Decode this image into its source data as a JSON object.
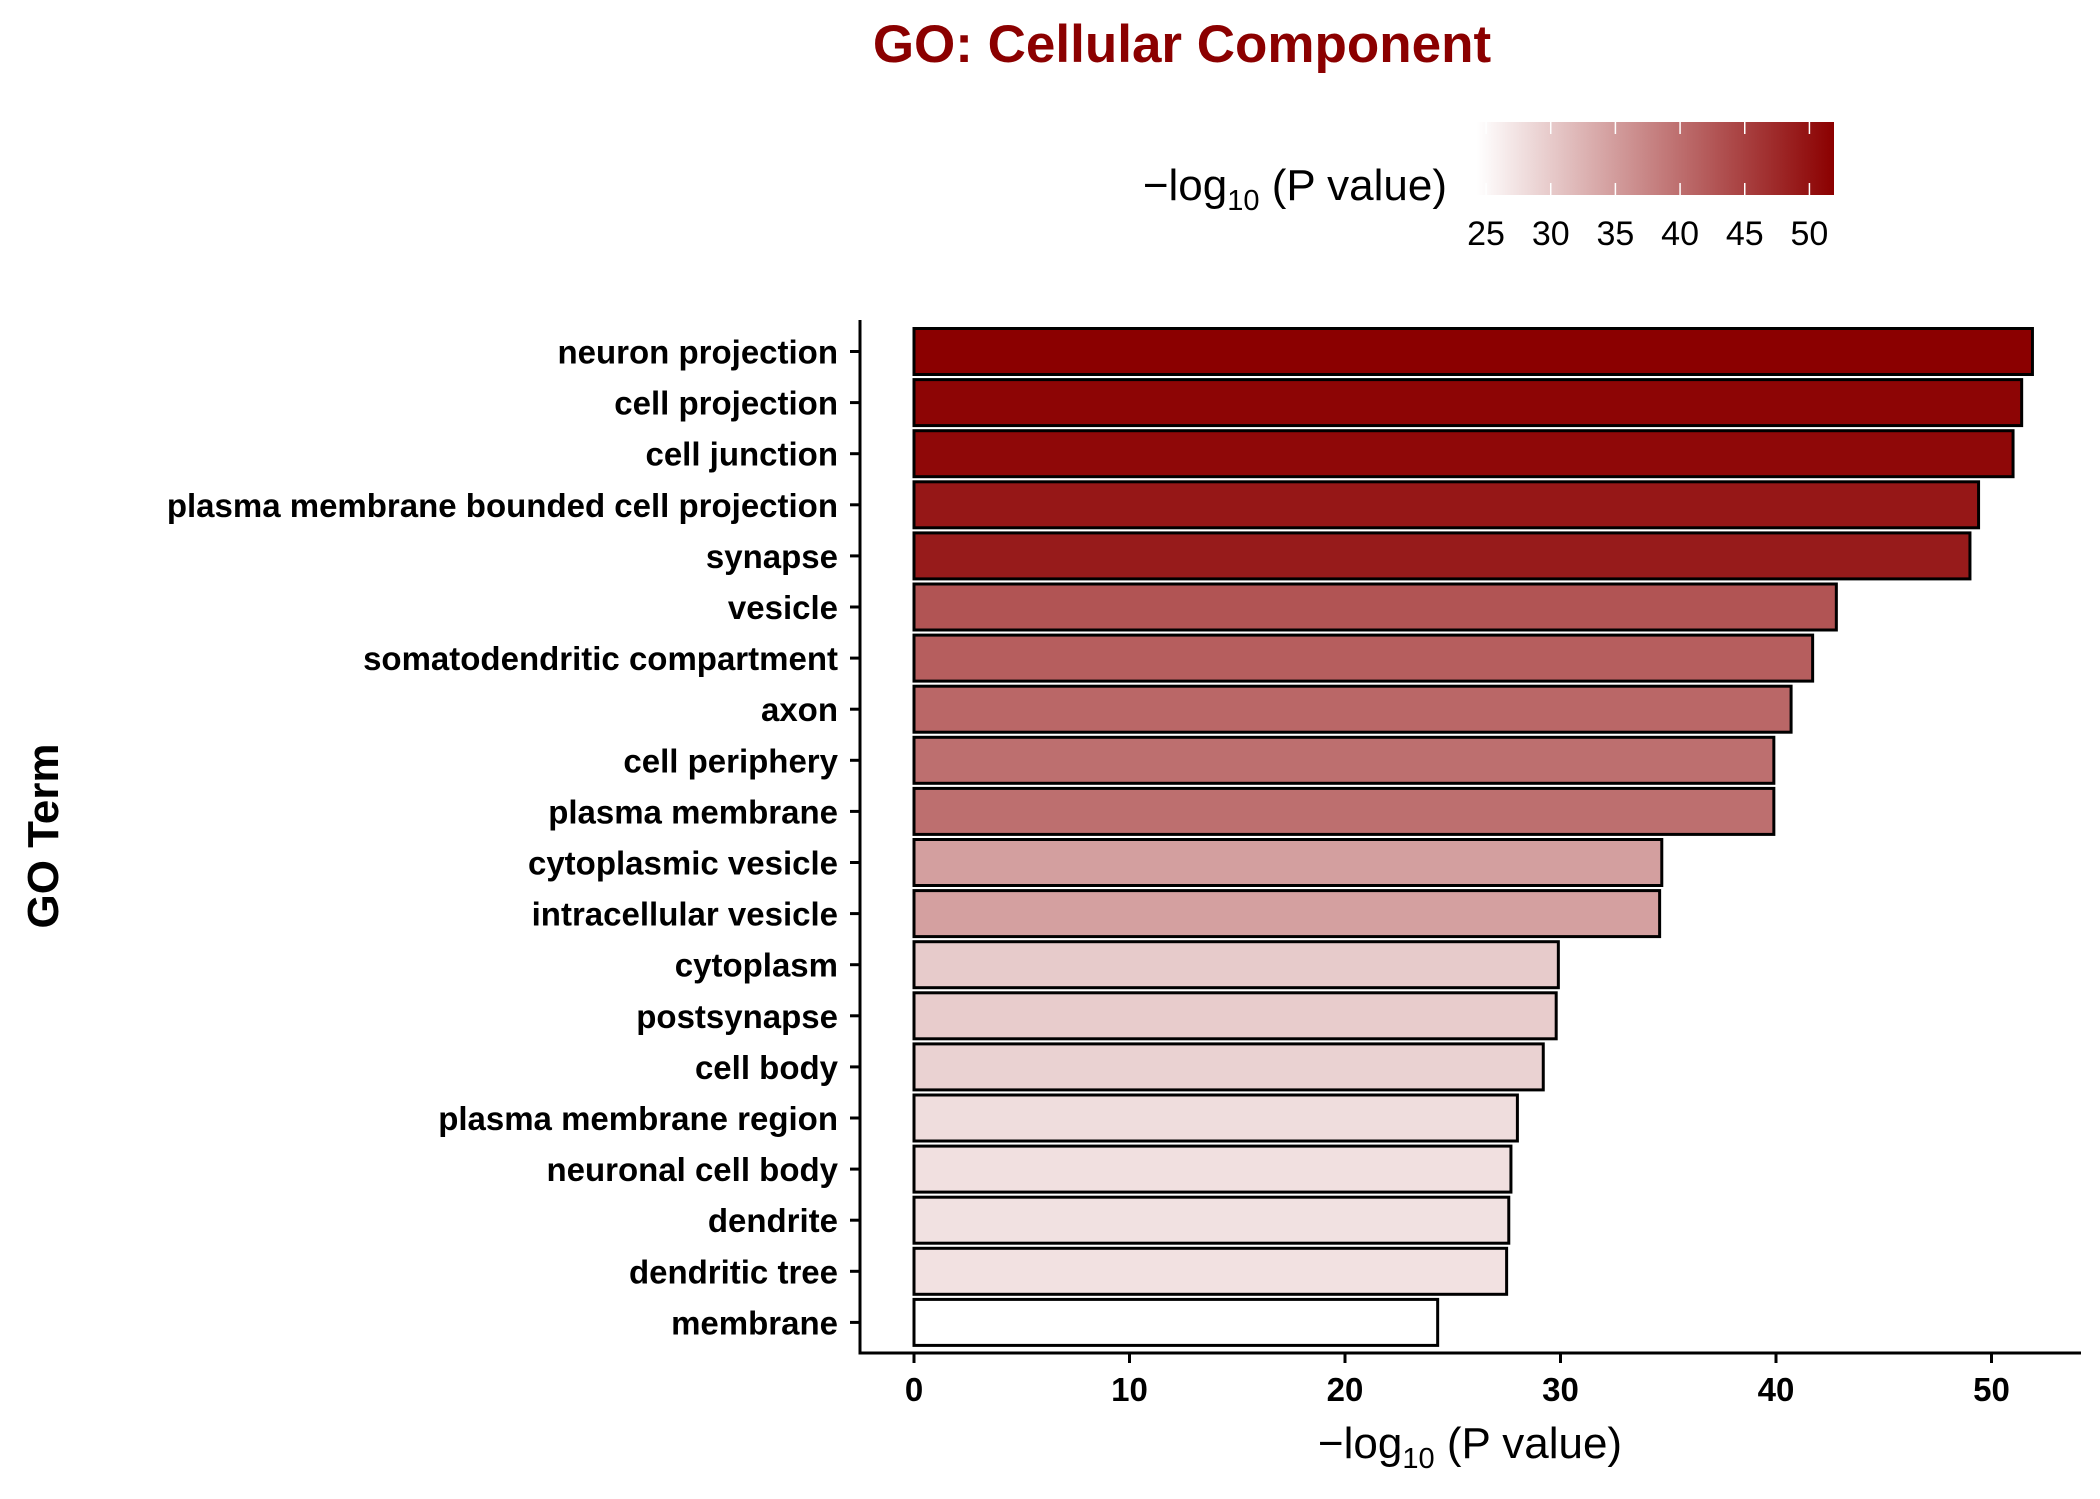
{
  "chart_data": {
    "type": "bar",
    "orientation": "horizontal",
    "title": "GO: Cellular Component",
    "xlabel": {
      "prefix": "−log",
      "sub": "10",
      "suffix": " (P value)"
    },
    "ylabel": "GO Term",
    "xlim": [
      -2.5,
      54
    ],
    "xticks": [
      "0",
      "10",
      "20",
      "30",
      "40",
      "50"
    ],
    "grid": false,
    "legend": {
      "title": {
        "prefix": "−log",
        "sub": "10",
        "suffix": " (P value)"
      },
      "position": "top",
      "ticks": [
        "25",
        "30",
        "35",
        "40",
        "45",
        "50"
      ],
      "range": [
        24.3,
        51.9
      ],
      "low_color": "#ffffff",
      "high_color": "#8b0000"
    },
    "bar_edge_color": "#000000",
    "categories": [
      "neuron projection",
      "cell projection",
      "cell junction",
      "plasma membrane bounded cell projection",
      "synapse",
      "vesicle",
      "somatodendritic compartment",
      "axon",
      "cell periphery",
      "plasma membrane",
      "cytoplasmic vesicle",
      "intracellular vesicle",
      "cytoplasm",
      "postsynapse",
      "cell body",
      "plasma membrane region",
      "neuronal cell body",
      "dendrite",
      "dendritic tree",
      "membrane"
    ],
    "values": [
      51.9,
      51.4,
      51.0,
      49.4,
      49.0,
      42.8,
      41.7,
      40.7,
      39.9,
      39.9,
      34.7,
      34.6,
      29.9,
      29.8,
      29.2,
      28.0,
      27.7,
      27.6,
      27.5,
      24.3
    ]
  }
}
